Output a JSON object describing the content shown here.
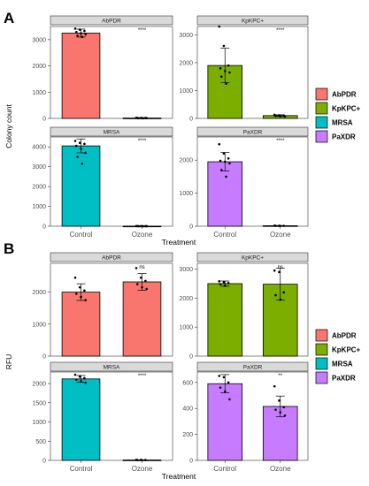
{
  "panels": [
    {
      "letter": "A",
      "ylabel": "Colony count",
      "xlabel": "Treatment",
      "categories": [
        "Control",
        "Ozone"
      ],
      "facets": [
        {
          "title": "AbPDR",
          "color": "#f8766d",
          "ylim": [
            0,
            3500
          ],
          "yticks": [
            0,
            1000,
            2000,
            3000
          ],
          "values": [
            3250,
            15
          ],
          "errors": [
            150,
            6
          ],
          "sig": "****",
          "points": [
            [
              3420,
              3380,
              3330,
              3290,
              3240,
              3200,
              3150,
              3100
            ],
            [
              25,
              20,
              18,
              15,
              12,
              10,
              8,
              5
            ]
          ]
        },
        {
          "title": "KpKPC+",
          "color": "#7cae00",
          "ylim": [
            0,
            3300
          ],
          "yticks": [
            0,
            1000,
            2000,
            3000
          ],
          "values": [
            1900,
            100
          ],
          "errors": [
            620,
            30
          ],
          "sig": "****",
          "points": [
            [
              3300,
              2600,
              1900,
              1800,
              1700,
              1650,
              1500,
              1250
            ],
            [
              130,
              110,
              100,
              90,
              80,
              70
            ]
          ]
        },
        {
          "title": "MRSA",
          "color": "#00bfc4",
          "ylim": [
            0,
            4500
          ],
          "yticks": [
            0,
            1000,
            2000,
            3000,
            4000
          ],
          "values": [
            4050,
            5
          ],
          "errors": [
            350,
            3
          ],
          "sig": "****",
          "points": [
            [
              4300,
              4200,
              4150,
              4050,
              3900,
              3700,
              3500,
              3150
            ],
            [
              8,
              6,
              5,
              4,
              3,
              2,
              1,
              0
            ]
          ]
        },
        {
          "title": "PaXDR",
          "color": "#c77cff",
          "ylim": [
            0,
            2700
          ],
          "yticks": [
            0,
            1000,
            2000
          ],
          "values": [
            1950,
            15
          ],
          "errors": [
            280,
            5
          ],
          "sig": "****",
          "points": [
            [
              2480,
              2200,
              2050,
              1980,
              1950,
              1900,
              1700,
              1500
            ],
            [
              20,
              15,
              12,
              10,
              8
            ]
          ]
        }
      ]
    },
    {
      "letter": "B",
      "ylabel": "RFU",
      "xlabel": "Treatment",
      "categories": [
        "Control",
        "Ozone"
      ],
      "facets": [
        {
          "title": "AbPDR",
          "color": "#f8766d",
          "ylim": [
            0,
            2900
          ],
          "yticks": [
            0,
            1000,
            2000
          ],
          "values": [
            2000,
            2320
          ],
          "errors": [
            260,
            260
          ],
          "sig": "ns",
          "points": [
            [
              2450,
              2150,
              2050,
              1950,
              1850,
              1750
            ],
            [
              2750,
              2450,
              2350,
              2250,
              2150,
              2100
            ]
          ]
        },
        {
          "title": "KpKPC+",
          "color": "#7cae00",
          "ylim": [
            0,
            3200
          ],
          "yticks": [
            0,
            1000,
            2000,
            3000
          ],
          "values": [
            2500,
            2480
          ],
          "errors": [
            90,
            550
          ],
          "sig": "ns",
          "points": [
            [
              2580,
              2550,
              2520,
              2480,
              2430
            ],
            [
              2950,
              2900,
              2200,
              2100,
              1950
            ]
          ]
        },
        {
          "title": "MRSA",
          "color": "#00bfc4",
          "ylim": [
            0,
            2300
          ],
          "yticks": [
            0,
            500,
            1000,
            1500,
            2000
          ],
          "values": [
            2120,
            10
          ],
          "errors": [
            90,
            4
          ],
          "sig": "****",
          "points": [
            [
              2230,
              2180,
              2140,
              2100,
              2060,
              2020
            ],
            [
              14,
              12,
              10,
              8,
              6
            ]
          ]
        },
        {
          "title": "PaXDR",
          "color": "#c77cff",
          "ylim": [
            0,
            680
          ],
          "yticks": [
            0,
            200,
            400,
            600
          ],
          "values": [
            590,
            415
          ],
          "errors": [
            70,
            80
          ],
          "sig": "**",
          "points": [
            [
              650,
              640,
              600,
              560,
              530,
              470
            ],
            [
              570,
              460,
              410,
              390,
              370,
              345
            ]
          ]
        }
      ]
    }
  ],
  "legend": [
    {
      "label": "AbPDR",
      "color": "#f8766d"
    },
    {
      "label": "KpKPC+",
      "color": "#7cae00"
    },
    {
      "label": "MRSA",
      "color": "#00bfc4"
    },
    {
      "label": "PaXDR",
      "color": "#c77cff"
    }
  ],
  "chart_data": [
    {
      "type": "bar",
      "panel": "A",
      "facet": "AbPDR",
      "categories": [
        "Control",
        "Ozone"
      ],
      "values": [
        3250,
        15
      ],
      "errors": [
        150,
        6
      ],
      "ylabel": "Colony count",
      "xlabel": "Treatment",
      "ylim": [
        0,
        3500
      ],
      "significance": "****"
    },
    {
      "type": "bar",
      "panel": "A",
      "facet": "KpKPC+",
      "categories": [
        "Control",
        "Ozone"
      ],
      "values": [
        1900,
        100
      ],
      "errors": [
        620,
        30
      ],
      "ylabel": "Colony count",
      "xlabel": "Treatment",
      "ylim": [
        0,
        3300
      ],
      "significance": "****"
    },
    {
      "type": "bar",
      "panel": "A",
      "facet": "MRSA",
      "categories": [
        "Control",
        "Ozone"
      ],
      "values": [
        4050,
        5
      ],
      "errors": [
        350,
        3
      ],
      "ylabel": "Colony count",
      "xlabel": "Treatment",
      "ylim": [
        0,
        4500
      ],
      "significance": "****"
    },
    {
      "type": "bar",
      "panel": "A",
      "facet": "PaXDR",
      "categories": [
        "Control",
        "Ozone"
      ],
      "values": [
        1950,
        15
      ],
      "errors": [
        280,
        5
      ],
      "ylabel": "Colony count",
      "xlabel": "Treatment",
      "ylim": [
        0,
        2700
      ],
      "significance": "****"
    },
    {
      "type": "bar",
      "panel": "B",
      "facet": "AbPDR",
      "categories": [
        "Control",
        "Ozone"
      ],
      "values": [
        2000,
        2320
      ],
      "errors": [
        260,
        260
      ],
      "ylabel": "RFU",
      "xlabel": "Treatment",
      "ylim": [
        0,
        2900
      ],
      "significance": "ns"
    },
    {
      "type": "bar",
      "panel": "B",
      "facet": "KpKPC+",
      "categories": [
        "Control",
        "Ozone"
      ],
      "values": [
        2500,
        2480
      ],
      "errors": [
        90,
        550
      ],
      "ylabel": "RFU",
      "xlabel": "Treatment",
      "ylim": [
        0,
        3200
      ],
      "significance": "ns"
    },
    {
      "type": "bar",
      "panel": "B",
      "facet": "MRSA",
      "categories": [
        "Control",
        "Ozone"
      ],
      "values": [
        2120,
        10
      ],
      "errors": [
        90,
        4
      ],
      "ylabel": "RFU",
      "xlabel": "Treatment",
      "ylim": [
        0,
        2300
      ],
      "significance": "****"
    },
    {
      "type": "bar",
      "panel": "B",
      "facet": "PaXDR",
      "categories": [
        "Control",
        "Ozone"
      ],
      "values": [
        590,
        415
      ],
      "errors": [
        70,
        80
      ],
      "ylabel": "RFU",
      "xlabel": "Treatment",
      "ylim": [
        0,
        680
      ],
      "significance": "**"
    }
  ]
}
